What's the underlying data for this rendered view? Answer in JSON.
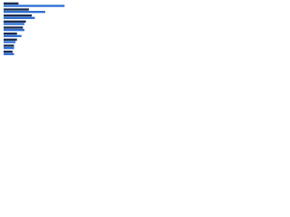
{
  "chart_data": {
    "type": "bar",
    "orientation": "horizontal",
    "categories": [
      null,
      null,
      null,
      null,
      null,
      null,
      null,
      null,
      null
    ],
    "series": [
      {
        "color": "#1b2c4f",
        "values": [
          20,
          34,
          38,
          30,
          26,
          18,
          18,
          14,
          12
        ]
      },
      {
        "color": "#2f6fd4",
        "values": [
          82,
          56,
          42,
          28,
          28,
          24,
          16,
          14,
          14
        ]
      }
    ],
    "xlim": [
      0,
      100
    ]
  }
}
